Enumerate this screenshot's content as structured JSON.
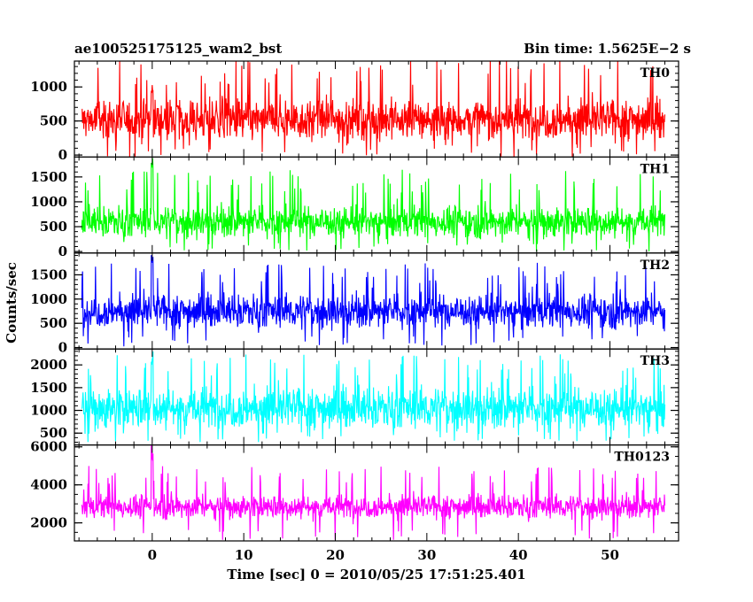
{
  "chart_data": {
    "type": "line",
    "title_left": "ae100525175125_wam2_bst",
    "title_right": "Bin time: 1.5625E−2 s",
    "xlabel": "Time [sec] 0 = 2010/05/25 17:51:25.401",
    "ylabel": "Counts/sec",
    "xlim": [
      -8.5,
      57.5
    ],
    "x_ticks": [
      0,
      10,
      20,
      30,
      40,
      50
    ],
    "x_minor_step": 2,
    "data_x_range": [
      -7.7,
      56.0
    ],
    "grid": false,
    "panels": [
      {
        "name": "TH0",
        "color": "#ff0000",
        "ylim": [
          -30,
          1380
        ],
        "y_ticks": [
          0,
          500,
          1000
        ],
        "y_minor_step": 100,
        "baseline": 520,
        "spread": 210,
        "spike_max": 1420,
        "spike_min": -40,
        "burst": {
          "x": 0.0,
          "peak": 1050
        }
      },
      {
        "name": "TH1",
        "color": "#00ff00",
        "ylim": [
          -30,
          1900
        ],
        "y_ticks": [
          0,
          500,
          1000,
          1500
        ],
        "y_minor_step": 100,
        "baseline": 600,
        "spread": 220,
        "spike_max": 1650,
        "spike_min": 0,
        "burst": {
          "x": 0.0,
          "peak": 1900
        }
      },
      {
        "name": "TH2",
        "color": "#0000ff",
        "ylim": [
          -30,
          1950
        ],
        "y_ticks": [
          0,
          500,
          1000,
          1500
        ],
        "y_minor_step": 100,
        "baseline": 750,
        "spread": 240,
        "spike_max": 1750,
        "spike_min": 20,
        "burst": {
          "x": 0.0,
          "peak": 1950
        }
      },
      {
        "name": "TH3",
        "color": "#00ffff",
        "ylim": [
          240,
          2350
        ],
        "y_ticks": [
          500,
          1000,
          1500,
          2000
        ],
        "y_minor_step": 100,
        "baseline": 1050,
        "spread": 320,
        "spike_max": 2250,
        "spike_min": 300,
        "burst": {
          "x": 0.0,
          "peak": 2350
        }
      },
      {
        "name": "TH0123",
        "color": "#ff00ff",
        "ylim": [
          1050,
          6100
        ],
        "y_ticks": [
          2000,
          4000,
          6000
        ],
        "y_minor_step": 500,
        "baseline": 2850,
        "spread": 430,
        "spike_max": 5000,
        "spike_min": 1100,
        "burst": {
          "x": 0.0,
          "peak": 6100
        }
      }
    ]
  }
}
